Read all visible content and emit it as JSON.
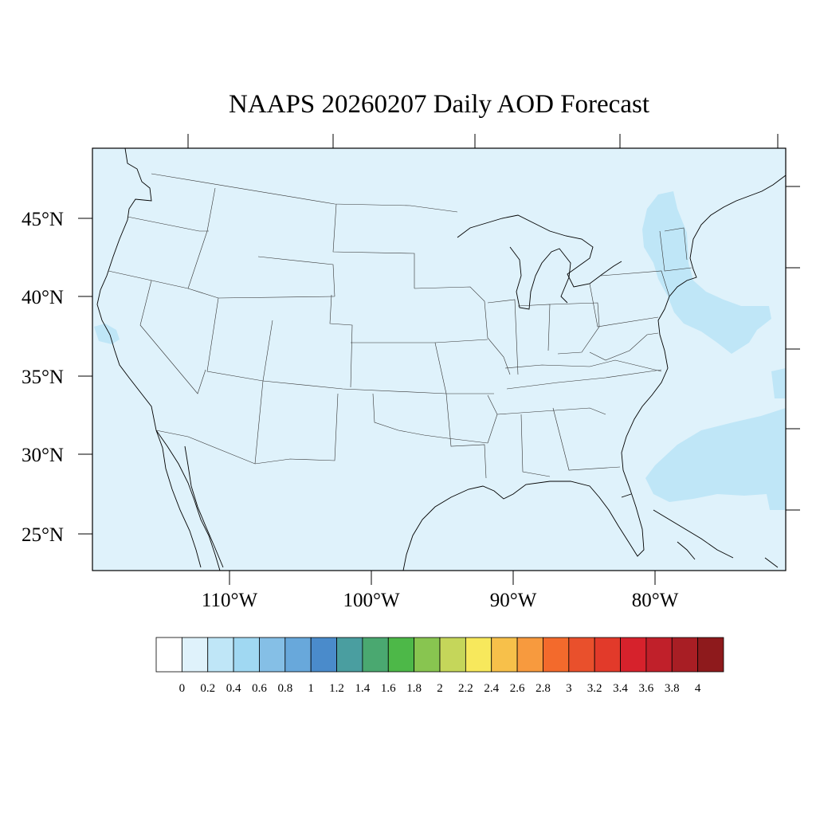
{
  "title": "NAAPS 20260207 Daily AOD Forecast",
  "map": {
    "background_color": "#dff2fb",
    "lat_labels": [
      "45°N",
      "40°N",
      "35°N",
      "30°N",
      "25°N"
    ],
    "lon_labels": [
      "110°W",
      "100°W",
      "90°W",
      "80°W"
    ]
  },
  "aod_field": {
    "variable": "AOD",
    "plumes": [
      {
        "region": "new-england-northeast",
        "level": "0.2-0.4",
        "color": "#bfe6f7"
      },
      {
        "region": "mid-atlantic-offshore",
        "level": "0.2-0.4",
        "color": "#bfe6f7"
      },
      {
        "region": "atlantic-subtropical",
        "level": "0.2-0.4",
        "color": "#bfe6f7"
      },
      {
        "region": "california-coast",
        "level": "0.2-0.4",
        "color": "#bfe6f7"
      }
    ]
  },
  "colorbar": {
    "labels": [
      "0",
      "0.2",
      "0.4",
      "0.6",
      "0.8",
      "1",
      "1.2",
      "1.4",
      "1.6",
      "1.8",
      "2",
      "2.2",
      "2.4",
      "2.6",
      "2.8",
      "3",
      "3.2",
      "3.4",
      "3.6",
      "3.8",
      "4"
    ],
    "colors": [
      "#ffffff",
      "#dff2fb",
      "#bfe6f7",
      "#a0d8f2",
      "#85bfe6",
      "#68a8db",
      "#4a8bcb",
      "#4a9ea0",
      "#4aa870",
      "#4db848",
      "#88c550",
      "#c5d65a",
      "#f7e85c",
      "#f7c04a",
      "#f79a3e",
      "#f36a2c",
      "#e9502c",
      "#e23a2a",
      "#d6222c",
      "#c0202a",
      "#a81e24",
      "#8e1a1c"
    ]
  }
}
